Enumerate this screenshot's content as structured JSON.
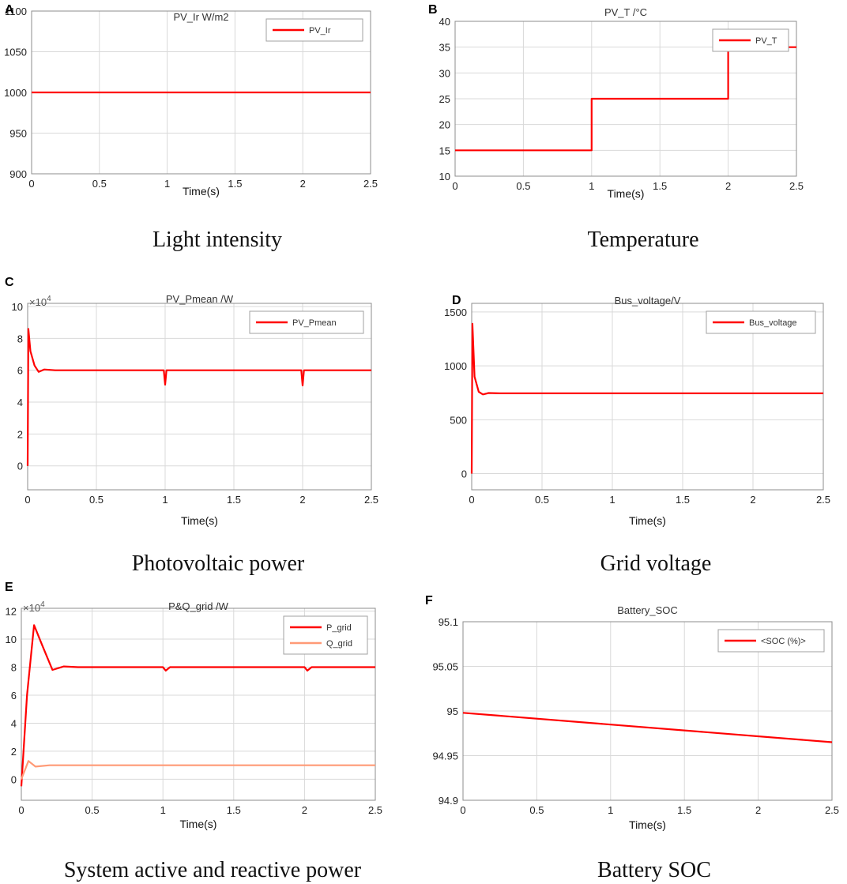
{
  "figure": {
    "captions": [
      "Light intensity",
      "Temperature",
      "Photovoltaic power",
      "Grid voltage",
      "System active and reactive power",
      "Battery SOC"
    ],
    "xlabel": "Time(s)"
  },
  "chart_data": [
    {
      "panel": "A",
      "type": "line",
      "title": "PV_Ir  W/m2",
      "caption": "Light intensity",
      "xlabel": "Time(s)",
      "xlim": [
        0,
        2.5
      ],
      "ylim": [
        900,
        1100
      ],
      "xticks": [
        "0",
        "0.5",
        "1",
        "1.5",
        "2",
        "2.5"
      ],
      "yticks": [
        "900",
        "950",
        "1000",
        "1050",
        "1100"
      ],
      "legend": "top-right",
      "grid": true,
      "series": [
        {
          "name": "PV_Ir",
          "color": "#ff0000",
          "x": [
            0,
            2.5
          ],
          "y": [
            1000,
            1000
          ]
        }
      ]
    },
    {
      "panel": "B",
      "type": "line",
      "title": "PV_T /°C",
      "caption": "Temperature",
      "xlabel": "Time(s)",
      "xlim": [
        0,
        2.5
      ],
      "ylim": [
        10,
        40
      ],
      "xticks": [
        "0",
        "0.5",
        "1",
        "1.5",
        "2",
        "2.5"
      ],
      "yticks": [
        "10",
        "15",
        "20",
        "25",
        "30",
        "35",
        "40"
      ],
      "legend": "top-right",
      "grid": true,
      "series": [
        {
          "name": "PV_T",
          "color": "#ff0000",
          "x": [
            0,
            1,
            1,
            2,
            2,
            2.5
          ],
          "y": [
            15,
            15,
            25,
            25,
            35,
            35
          ]
        }
      ]
    },
    {
      "panel": "C",
      "type": "line",
      "title": "PV_Pmean /W",
      "caption": "Photovoltaic power",
      "xlabel": "Time(s)",
      "xlim": [
        0,
        2.5
      ],
      "ylim": [
        -1.5,
        10.2
      ],
      "exponent": "×10^4",
      "xticks": [
        "0",
        "0.5",
        "1",
        "1.5",
        "2",
        "2.5"
      ],
      "yticks": [
        "0",
        "2",
        "4",
        "6",
        "8",
        "10"
      ],
      "legend": "top-right",
      "grid": true,
      "series": [
        {
          "name": "PV_Pmean",
          "color": "#ff0000",
          "x": [
            0,
            0.005,
            0.02,
            0.05,
            0.08,
            0.12,
            0.2,
            0.99,
            1.0,
            1.01,
            1.02,
            1.99,
            2.0,
            2.01,
            2.02,
            2.5
          ],
          "y": [
            0,
            8.6,
            7.2,
            6.3,
            5.9,
            6.05,
            6.0,
            6.0,
            5.1,
            6.0,
            6.0,
            6.0,
            5.05,
            6.0,
            6.0,
            6.0
          ]
        }
      ]
    },
    {
      "panel": "D",
      "type": "line",
      "title": "Bus_voltage/V",
      "caption": "Grid voltage",
      "xlabel": "Time(s)",
      "xlim": [
        0,
        2.5
      ],
      "ylim": [
        -150,
        1580
      ],
      "xticks": [
        "0",
        "0.5",
        "1",
        "1.5",
        "2",
        "2.5"
      ],
      "yticks": [
        "0",
        "500",
        "1000",
        "1500"
      ],
      "legend": "top-right",
      "grid": true,
      "series": [
        {
          "name": "Bus_voltage",
          "color": "#ff0000",
          "x": [
            0,
            0.005,
            0.02,
            0.05,
            0.08,
            0.12,
            0.2,
            2.5
          ],
          "y": [
            0,
            1390,
            900,
            760,
            735,
            748,
            745,
            745
          ]
        }
      ]
    },
    {
      "panel": "E",
      "type": "line",
      "title": "P&Q_grid /W",
      "caption": "System active and reactive power",
      "xlabel": "Time(s)",
      "xlim": [
        0,
        2.5
      ],
      "ylim": [
        -1.5,
        12.2
      ],
      "exponent": "×10^4",
      "xticks": [
        "0",
        "0.5",
        "1",
        "1.5",
        "2",
        "2.5"
      ],
      "yticks": [
        "0",
        "2",
        "4",
        "6",
        "8",
        "10",
        "12"
      ],
      "legend": "top-right",
      "grid": true,
      "series": [
        {
          "name": "P_grid",
          "color": "#ff0000",
          "x": [
            0,
            0.04,
            0.09,
            0.15,
            0.22,
            0.3,
            0.4,
            1.0,
            1.02,
            1.05,
            2.0,
            2.02,
            2.05,
            2.5
          ],
          "y": [
            -0.5,
            6,
            11,
            9.5,
            7.8,
            8.05,
            8.0,
            8.0,
            7.75,
            8.0,
            8.0,
            7.75,
            8.0,
            8.0
          ]
        },
        {
          "name": "Q_grid",
          "color": "#ff9a76",
          "x": [
            0,
            0.05,
            0.1,
            0.2,
            2.5
          ],
          "y": [
            0,
            1.3,
            0.9,
            1.0,
            1.0
          ]
        }
      ]
    },
    {
      "panel": "F",
      "type": "line",
      "title": "Battery_SOC",
      "caption": "Battery SOC",
      "xlabel": "Time(s)",
      "xlim": [
        0,
        2.5
      ],
      "ylim": [
        94.9,
        95.1
      ],
      "xticks": [
        "0",
        "0.5",
        "1",
        "1.5",
        "2",
        "2.5"
      ],
      "yticks": [
        "94.9",
        "94.95",
        "95",
        "95.05",
        "95.1"
      ],
      "legend": "top-right",
      "grid": true,
      "series": [
        {
          "name": "<SOC (%)>",
          "color": "#ff0000",
          "x": [
            0,
            2.5
          ],
          "y": [
            94.998,
            94.965
          ]
        }
      ]
    }
  ]
}
